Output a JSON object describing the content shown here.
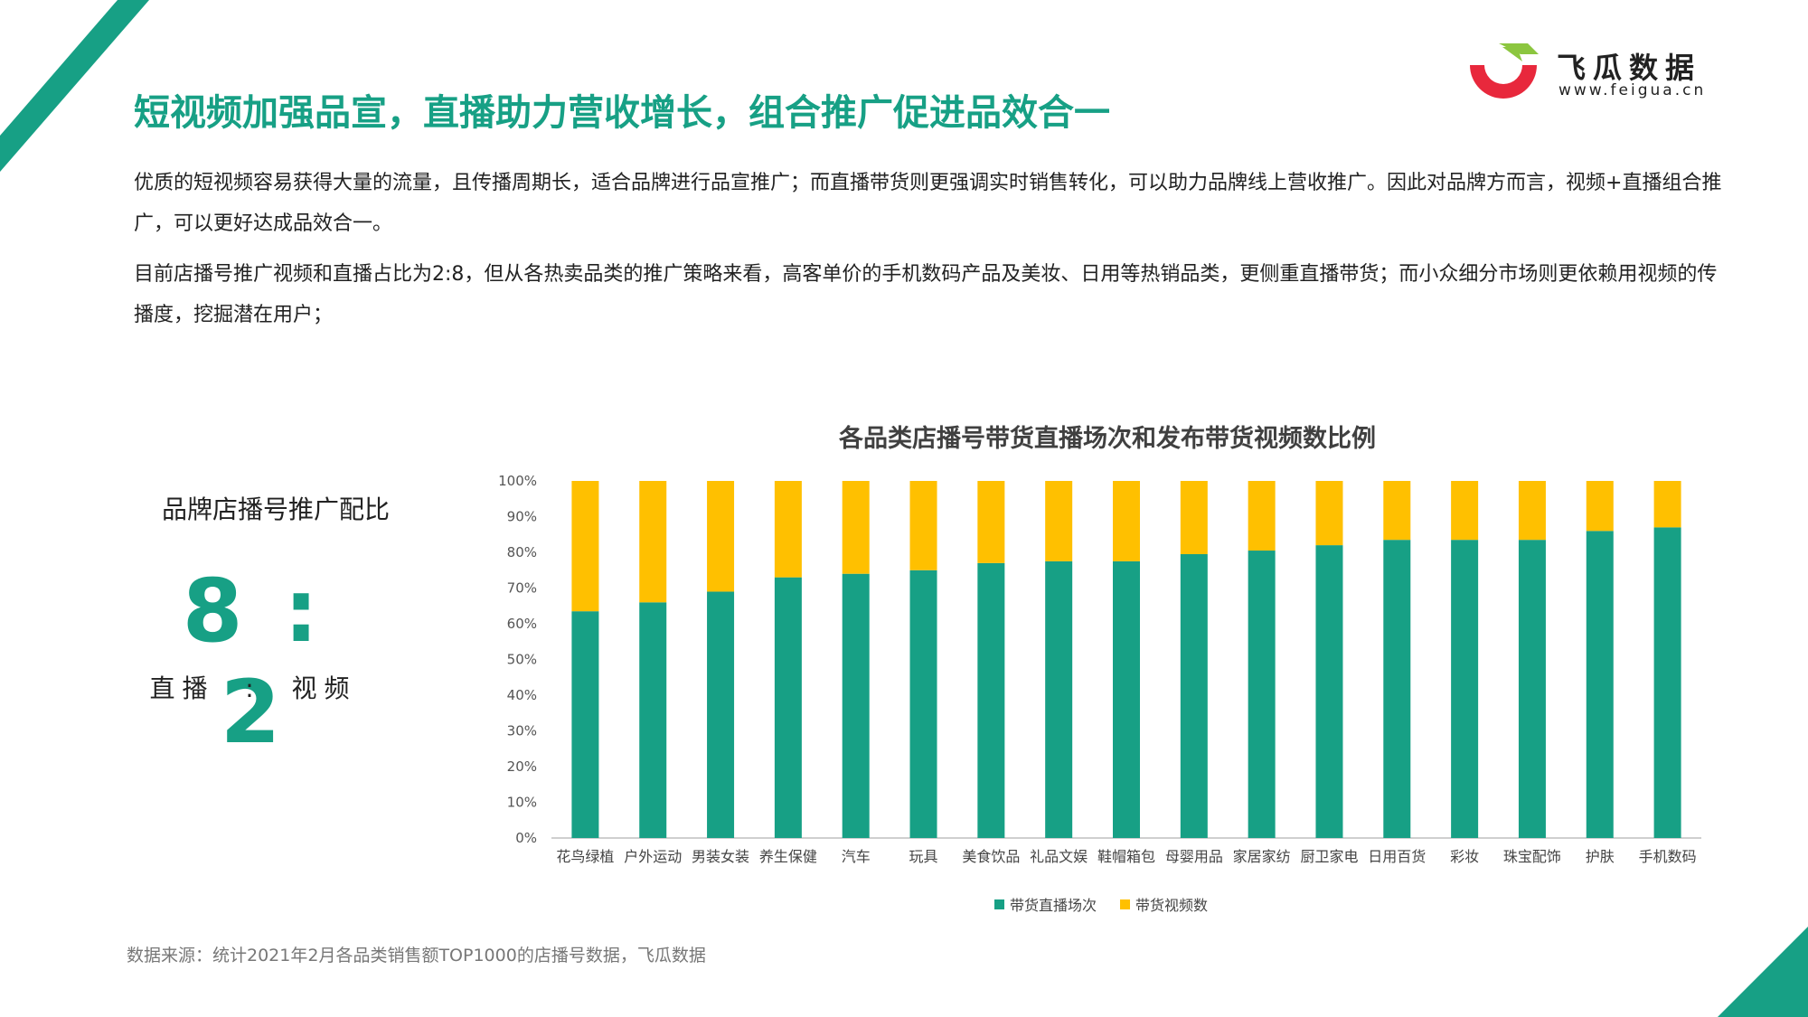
{
  "colors": {
    "accent": "#17a085",
    "live": "#17a085",
    "video": "#ffc000",
    "logo_red": "#e8283c",
    "logo_green": "#8cc63f"
  },
  "logo": {
    "name": "飞瓜数据",
    "url": "www.feigua.cn"
  },
  "header": {
    "title": "短视频加强品宣，直播助力营收增长，组合推广促进品效合一"
  },
  "body": {
    "paragraph1": "优质的短视频容易获得大量的流量，且传播周期长，适合品牌进行品宣推广；而直播带货则更强调实时销售转化，可以助力品牌线上营收推广。因此对品牌方而言，视频+直播组合推广，可以更好达成品效合一。",
    "paragraph2": "目前店播号推广视频和直播占比为2:8，但从各热卖品类的推广策略来看，高客单价的手机数码产品及美妆、日用等热销品类，更侧重直播带货；而小众细分市场则更依赖用视频的传播度，挖掘潜在用户；"
  },
  "ratio": {
    "label": "品牌店播号推广配比",
    "value": "8 : 2",
    "sub": "直播  :  视频"
  },
  "source": "数据来源：统计2021年2月各品类销售额TOP1000的店播号数据，飞瓜数据",
  "chart_data": {
    "type": "bar",
    "stacked": true,
    "title": "各品类店播号带货直播场次和发布带货视频数比例",
    "categories": [
      "花鸟绿植",
      "户外运动",
      "男装女装",
      "养生保健",
      "汽车",
      "玩具",
      "美食饮品",
      "礼品文娱",
      "鞋帽箱包",
      "母婴用品",
      "家居家纺",
      "厨卫家电",
      "日用百货",
      "彩妆",
      "珠宝配饰",
      "护肤",
      "手机数码"
    ],
    "y_ticks": [
      "0%",
      "10%",
      "20%",
      "30%",
      "40%",
      "50%",
      "60%",
      "70%",
      "80%",
      "90%",
      "100%"
    ],
    "ylim": [
      0,
      100
    ],
    "series": [
      {
        "name": "带货直播场次",
        "values": [
          63.5,
          66,
          69,
          73,
          74,
          75,
          77,
          77.5,
          77.5,
          79.5,
          80.5,
          82,
          83.5,
          83.5,
          83.5,
          86,
          87
        ]
      },
      {
        "name": "带货视频数",
        "values": [
          36.5,
          34,
          31,
          27,
          26,
          25,
          23,
          22.5,
          22.5,
          20.5,
          19.5,
          18,
          16.5,
          16.5,
          16.5,
          14,
          13
        ]
      }
    ],
    "legend_position": "bottom",
    "grid": false
  }
}
